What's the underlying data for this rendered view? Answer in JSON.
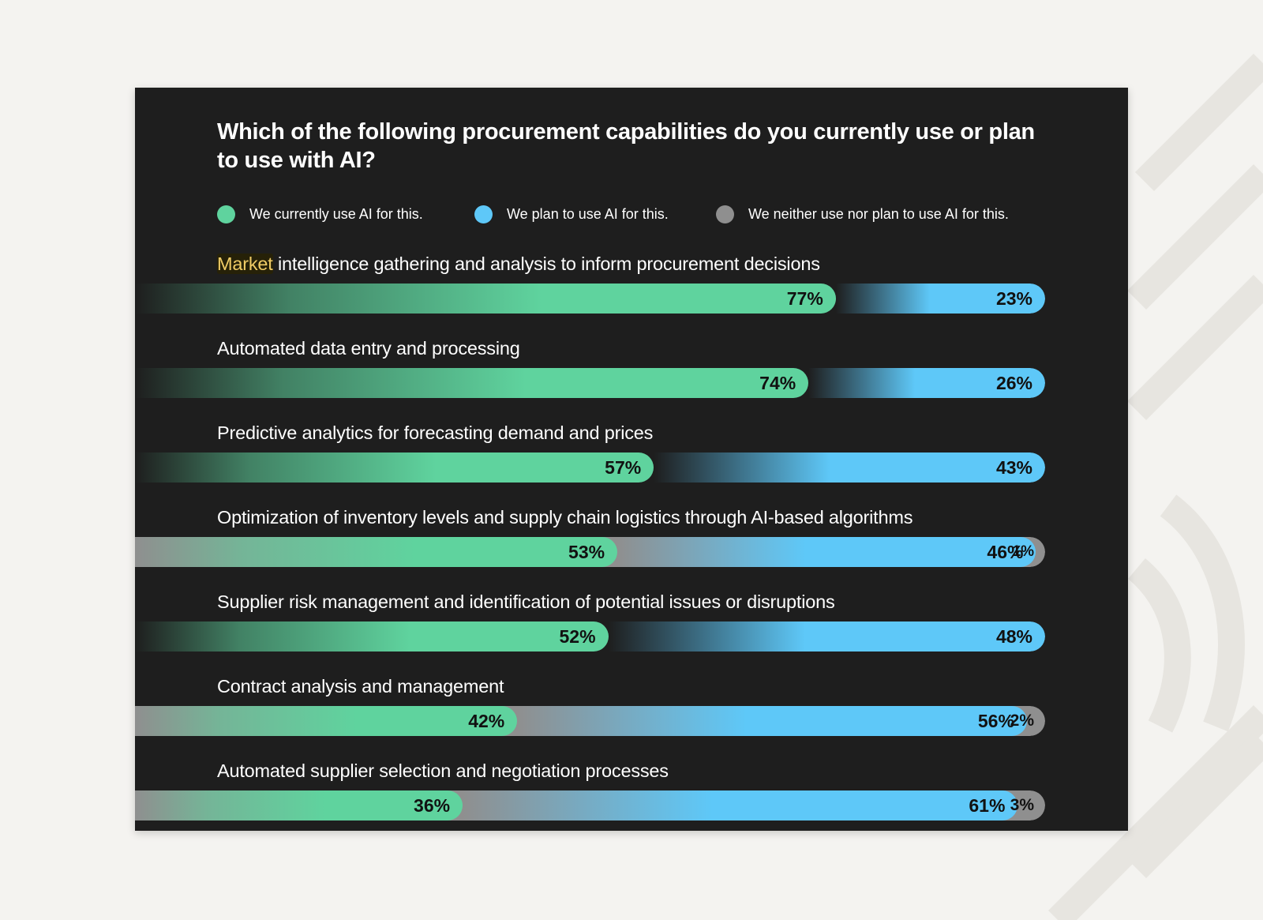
{
  "colors": {
    "current": "#5fd39e",
    "plan": "#5ec8f8",
    "neither": "#8f8f8f",
    "card_bg": "#1e1e1e",
    "highlight": "#f0cc66"
  },
  "chart_data": {
    "type": "bar",
    "orientation": "horizontal",
    "stacked": true,
    "title": "Which of the following procurement capabilities do you currently use or plan to use with AI?",
    "legend": [
      {
        "key": "current",
        "label": "We currently use AI for this."
      },
      {
        "key": "plan",
        "label": "We plan to use AI for this."
      },
      {
        "key": "neither",
        "label": "We neither use nor plan to use AI for this."
      }
    ],
    "categories": [
      {
        "label": "intelligence gathering and analysis to inform procurement decisions",
        "highlight_word": "Market"
      },
      {
        "label": "Automated data entry and processing"
      },
      {
        "label": "Predictive analytics for forecasting demand and prices"
      },
      {
        "label": "Optimization of inventory levels and supply chain logistics through AI-based algorithms"
      },
      {
        "label": "Supplier risk management and identification of potential issues or disruptions"
      },
      {
        "label": "Contract analysis and management"
      },
      {
        "label": "Automated supplier selection and negotiation processes"
      }
    ],
    "series": [
      {
        "name": "We currently use AI for this.",
        "key": "current",
        "values": [
          77,
          74,
          57,
          53,
          52,
          42,
          36
        ]
      },
      {
        "name": "We plan to use AI for this.",
        "key": "plan",
        "values": [
          23,
          26,
          43,
          46,
          48,
          56,
          61
        ]
      },
      {
        "name": "We neither use nor plan to use AI for this.",
        "key": "neither",
        "values": [
          0,
          0,
          0,
          1,
          0,
          2,
          3
        ]
      }
    ],
    "unit": "%",
    "xlim": [
      0,
      100
    ]
  }
}
